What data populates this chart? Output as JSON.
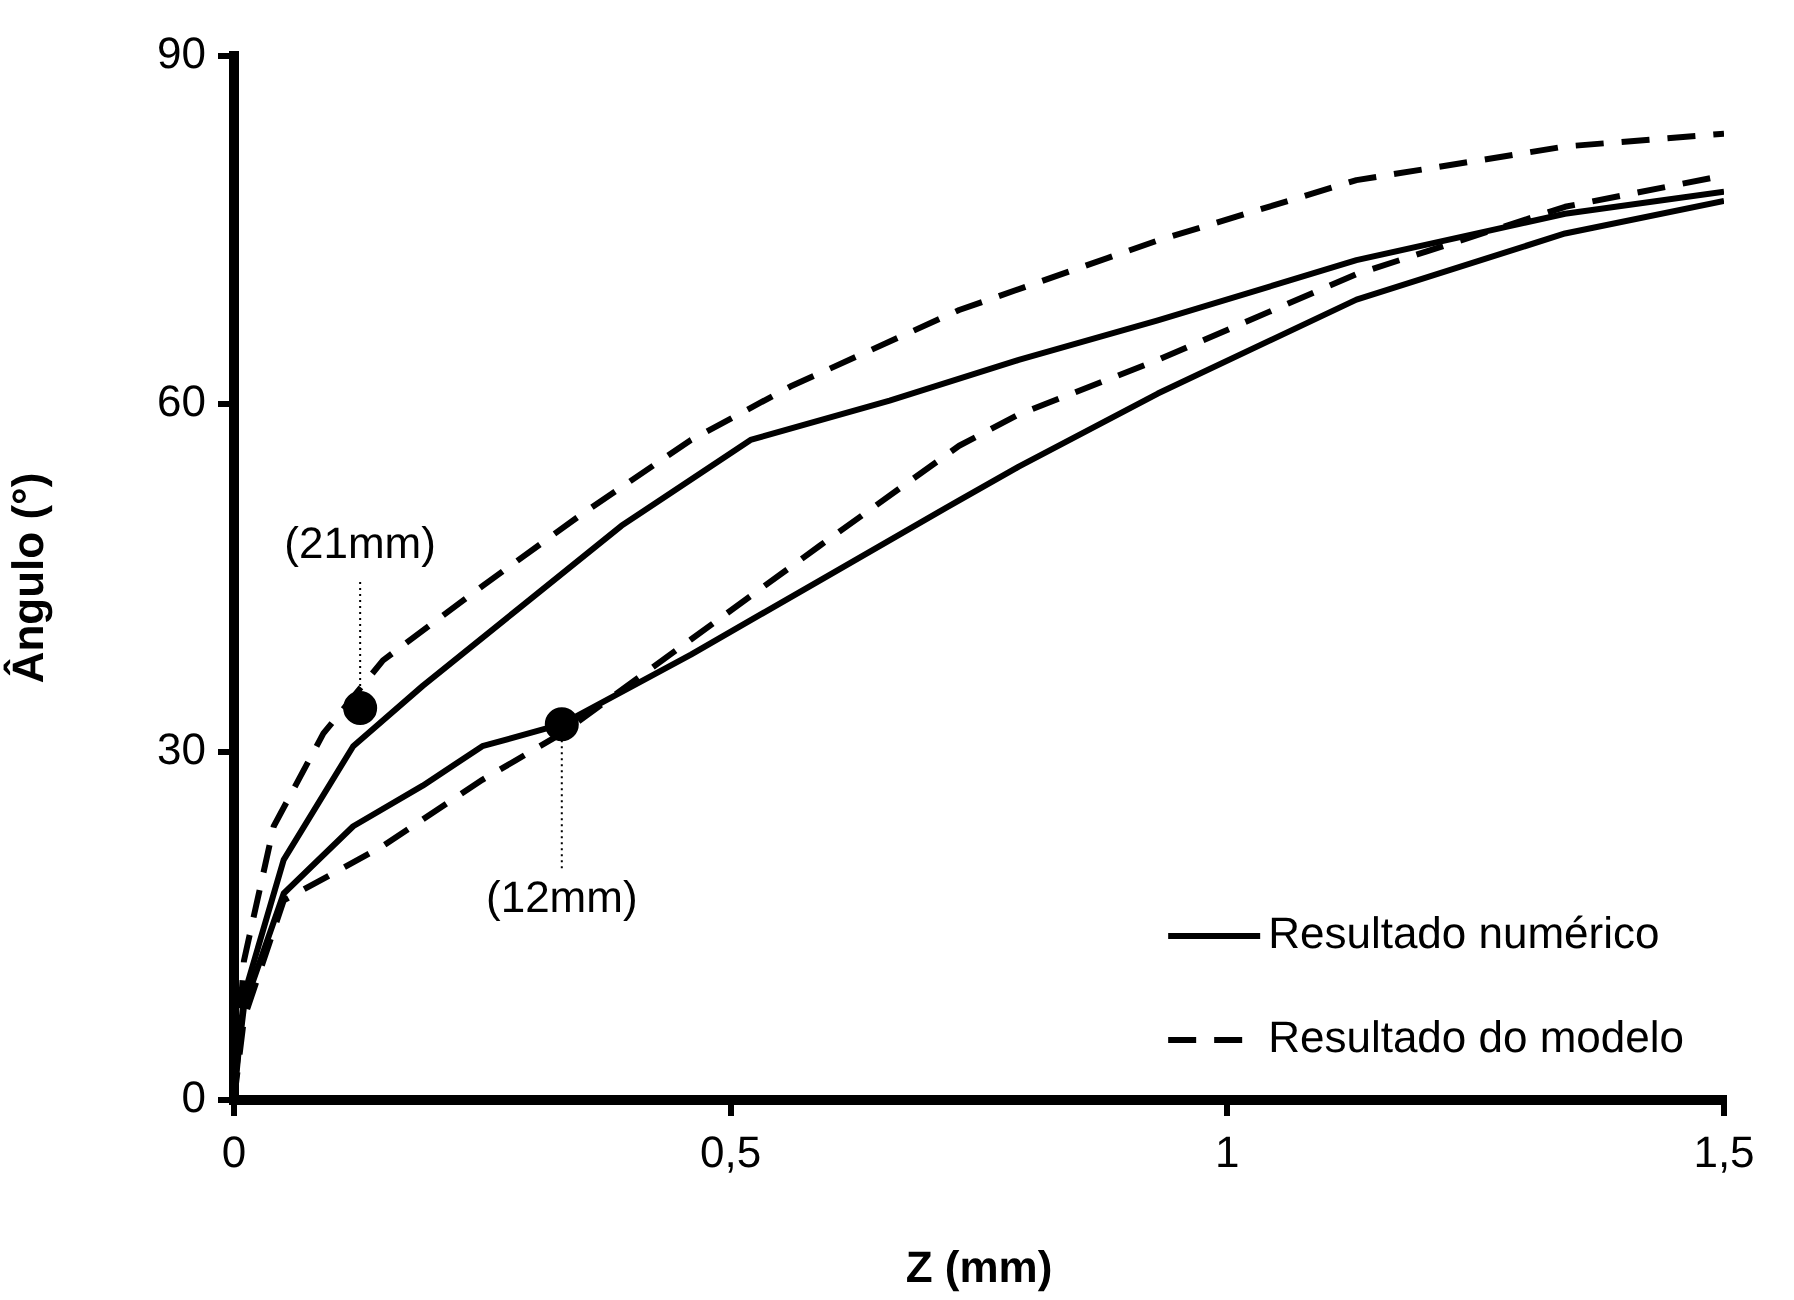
{
  "chart_data": {
    "type": "line",
    "xlabel": "Z (mm)",
    "ylabel": "Ângulo (°)",
    "xlim": [
      0,
      1.5
    ],
    "xticks": [
      0,
      {
        "value": 0.5,
        "label": "0,5"
      },
      1,
      {
        "value": 1.5,
        "label": "1,5"
      }
    ],
    "ylim": [
      0,
      90
    ],
    "yticks": [
      0,
      30,
      60,
      90
    ],
    "grid": false,
    "legend": "bottom right",
    "series": [
      {
        "name": "Resultado numérico",
        "color": "#000000",
        "line_style": "solid",
        "marker": "none",
        "x": [
          0,
          0.01,
          0.05,
          0.12,
          0.19,
          0.29,
          0.39,
          0.52,
          0.66,
          0.79,
          0.93,
          1.13,
          1.34,
          1.5
        ],
        "values": [
          0,
          9,
          20.7,
          30.5,
          35.7,
          42.6,
          49.5,
          56.9,
          60.3,
          63.8,
          67.2,
          72.4,
          76.4,
          78.3
        ]
      },
      {
        "name": "Resultado do modelo",
        "color": "#000000",
        "line_style": "dashed",
        "marker": "none",
        "x": [
          0,
          0.01,
          0.04,
          0.09,
          0.15,
          0.25,
          0.35,
          0.46,
          0.56,
          0.73,
          0.93,
          1.13,
          1.34,
          1.5
        ],
        "values": [
          0,
          12,
          23.6,
          31.6,
          37.9,
          44.3,
          50.5,
          56.9,
          61.5,
          68.1,
          74.1,
          79.3,
          82.2,
          83.3
        ]
      },
      {
        "color": "#000000",
        "line_style": "solid",
        "marker": "none",
        "x": [
          0,
          0.01,
          0.05,
          0.12,
          0.19,
          0.25,
          0.33,
          0.46,
          0.59,
          0.73,
          0.79,
          0.93,
          1.13,
          1.34,
          1.5
        ],
        "values": [
          1,
          8,
          17.8,
          23.6,
          27.1,
          30.5,
          32.4,
          38.4,
          44.8,
          51.7,
          54.6,
          60.9,
          69,
          74.7,
          77.5
        ]
      },
      {
        "color": "#000000",
        "line_style": "dashed",
        "marker": "none",
        "x": [
          0,
          0.01,
          0.05,
          0.15,
          0.25,
          0.33,
          0.46,
          0.59,
          0.73,
          0.79,
          0.93,
          1.13,
          1.34,
          1.5
        ],
        "values": [
          0,
          7,
          17.2,
          21.9,
          27.6,
          31.6,
          39.7,
          47.8,
          56.4,
          59.1,
          63.8,
          71.2,
          77,
          79.7
        ]
      },
      {
        "type": "scatter",
        "color": "#000000",
        "marker": "circle",
        "x": [
          0.127,
          0.33
        ],
        "values": [
          33.8,
          32.4
        ]
      }
    ],
    "annotations": [
      {
        "text": "(21mm)",
        "x": 0.127,
        "y": 33.8
      },
      {
        "text": "(12mm)",
        "x": 0.33,
        "y": 32.4
      }
    ]
  }
}
